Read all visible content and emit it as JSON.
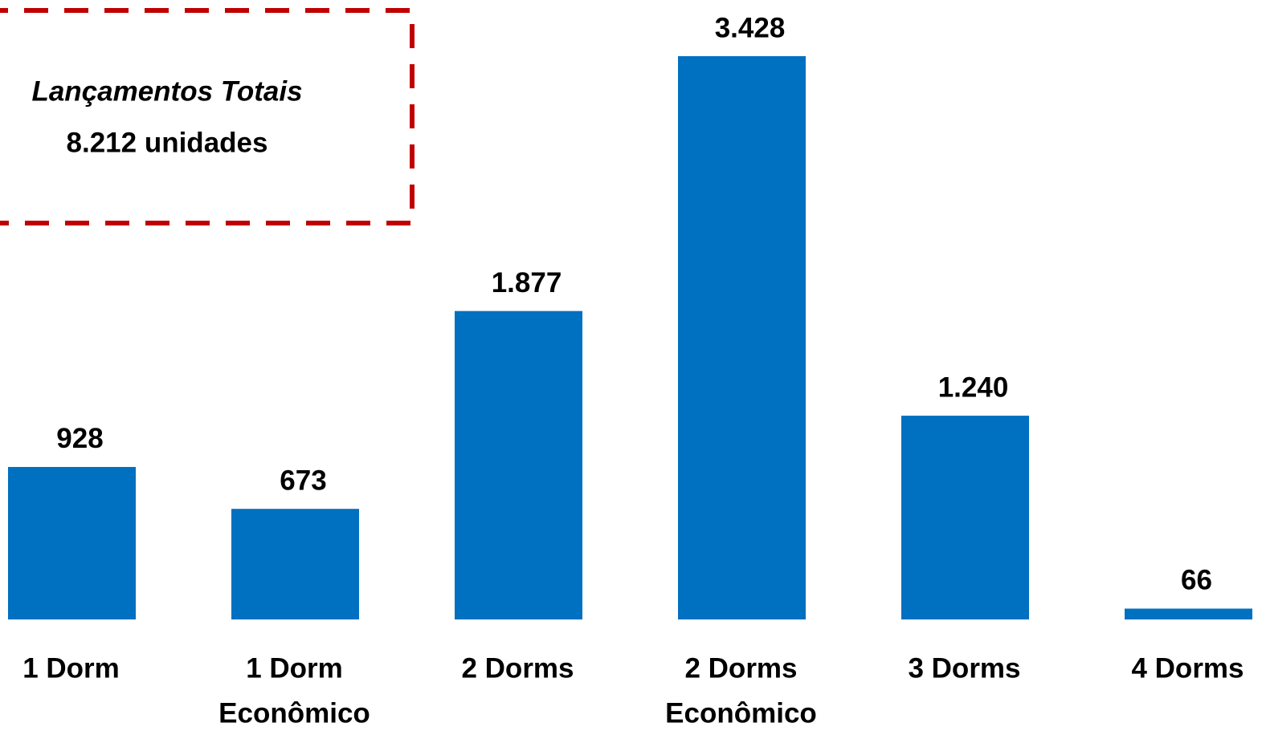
{
  "chart_data": {
    "type": "bar",
    "categories": [
      [
        "1 Dorm"
      ],
      [
        "1 Dorm",
        "Econômico"
      ],
      [
        "2 Dorms"
      ],
      [
        "2 Dorms",
        "Econômico"
      ],
      [
        "3 Dorms"
      ],
      [
        "4 Dorms"
      ]
    ],
    "values": [
      928,
      673,
      1877,
      3428,
      1240,
      66
    ],
    "value_labels": [
      "928",
      "673",
      "1.877",
      "3.428",
      "1.240",
      "66"
    ],
    "color": "#0070c0",
    "annotation": {
      "title": "Lançamentos Totais",
      "text": "8.212 unidades",
      "border_color": "#c00000"
    }
  }
}
